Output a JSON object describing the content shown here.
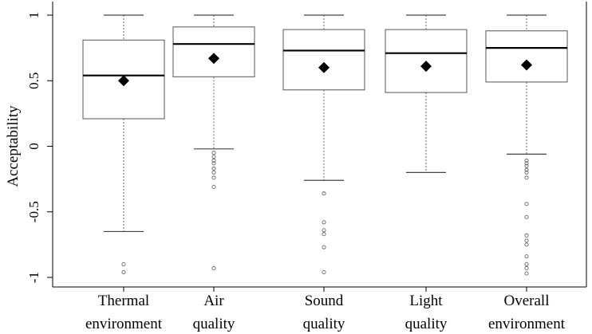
{
  "chart_data": {
    "type": "boxplot",
    "title": "",
    "xlabel": "",
    "ylabel": "Acceptability",
    "ylim": [
      -1.05,
      1.05
    ],
    "yticks": [
      -1,
      -0.5,
      0,
      0.5,
      1
    ],
    "ytick_labels": [
      "-1",
      "-0.5",
      "0",
      "0.5",
      "1"
    ],
    "grid": false,
    "categories": [
      {
        "line1": "Thermal",
        "line2": "environment"
      },
      {
        "line1": "Air",
        "line2": "quality"
      },
      {
        "line1": "Sound",
        "line2": "quality"
      },
      {
        "line1": "Light",
        "line2": "quality"
      },
      {
        "line1": "Overall",
        "line2": "environment"
      }
    ],
    "boxes": [
      {
        "whisker_low": -0.65,
        "q1": 0.21,
        "median": 0.54,
        "q3": 0.81,
        "whisker_high": 1.0,
        "mean": 0.5,
        "outliers": [
          -0.9,
          -0.96
        ]
      },
      {
        "whisker_low": -0.02,
        "q1": 0.53,
        "median": 0.78,
        "q3": 0.91,
        "whisker_high": 1.0,
        "mean": 0.67,
        "outliers": [
          -0.05,
          -0.08,
          -0.11,
          -0.13,
          -0.17,
          -0.2,
          -0.24,
          -0.31,
          -0.93
        ]
      },
      {
        "whisker_low": -0.26,
        "q1": 0.43,
        "median": 0.73,
        "q3": 0.89,
        "whisker_high": 1.0,
        "mean": 0.6,
        "outliers": [
          -0.36,
          -0.58,
          -0.64,
          -0.67,
          -0.77,
          -0.96
        ]
      },
      {
        "whisker_low": -0.2,
        "q1": 0.41,
        "median": 0.71,
        "q3": 0.89,
        "whisker_high": 1.0,
        "mean": 0.61,
        "outliers": []
      },
      {
        "whisker_low": -0.06,
        "q1": 0.49,
        "median": 0.75,
        "q3": 0.88,
        "whisker_high": 1.0,
        "mean": 0.62,
        "outliers": [
          -0.11,
          -0.13,
          -0.15,
          -0.18,
          -0.2,
          -0.24,
          -0.44,
          -0.54,
          -0.68,
          -0.72,
          -0.75,
          -0.84,
          -0.9,
          -0.93,
          -0.97
        ]
      }
    ],
    "colors": {
      "box_fill": "#ffffff",
      "box_stroke": "#555555",
      "median": "#000000",
      "mean": "#000000",
      "outlier": "#666666"
    }
  }
}
